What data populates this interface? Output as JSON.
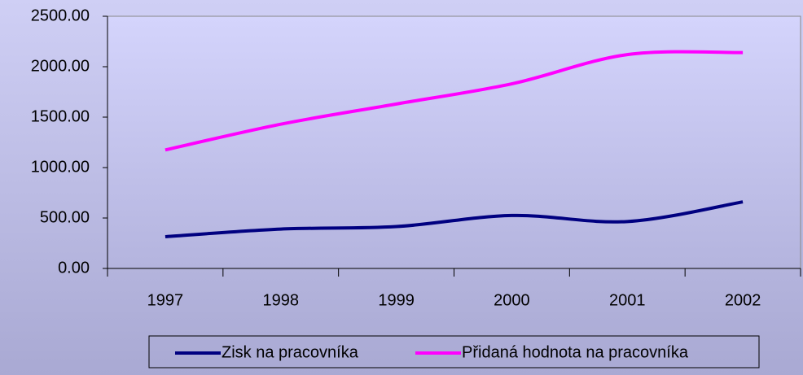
{
  "chart_data": {
    "type": "line",
    "categories": [
      "1997",
      "1998",
      "1999",
      "2000",
      "2001",
      "2002"
    ],
    "series": [
      {
        "name": "Zisk na pracovníka",
        "color": "#000080",
        "values": [
          315,
          390,
          415,
          525,
          465,
          660
        ]
      },
      {
        "name": "Přidaná hodnota na pracovníka",
        "color": "#ff00ff",
        "values": [
          1175,
          1430,
          1630,
          1830,
          2120,
          2140
        ]
      }
    ],
    "ylim": [
      0,
      2500
    ],
    "yticks": [
      {
        "value": 0,
        "label": "0.00"
      },
      {
        "value": 500,
        "label": "500.00"
      },
      {
        "value": 1000,
        "label": "1000.00"
      },
      {
        "value": 1500,
        "label": "1500.00"
      },
      {
        "value": 2000,
        "label": "2000.00"
      },
      {
        "value": 2500,
        "label": "2500.00"
      }
    ],
    "legend": "bottom"
  }
}
